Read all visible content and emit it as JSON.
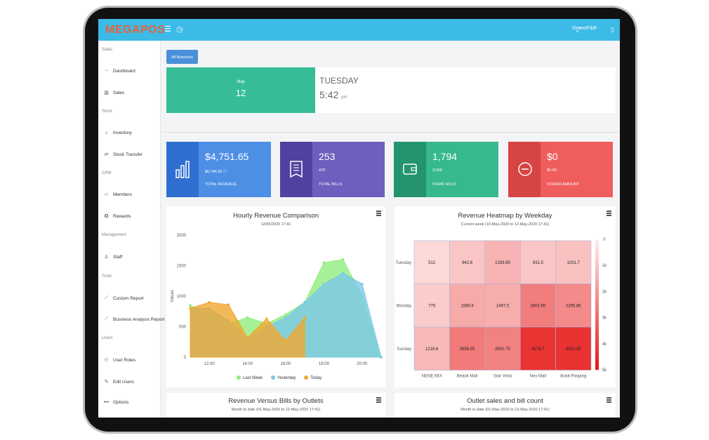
{
  "header": {
    "brand": "MEGAPOS",
    "menu_icon": "hamburger-icon",
    "clock_icon": "clock-icon",
    "user": "DemoF&B",
    "expand_icon": "expand-icon",
    "device_icon": "device-icon"
  },
  "sidebar": {
    "sections": [
      {
        "title": "Sales",
        "items": [
          {
            "label": "Dashboard",
            "icon": "dashboard-icon"
          },
          {
            "label": "Sales",
            "icon": "bar-chart-icon"
          }
        ]
      },
      {
        "title": "Stock",
        "items": [
          {
            "label": "Inventory",
            "icon": "home-icon"
          },
          {
            "label": "Stock Transfer",
            "icon": "transfer-icon"
          }
        ]
      },
      {
        "title": "CRM",
        "items": [
          {
            "label": "Members",
            "icon": "members-icon"
          },
          {
            "label": "Rewards",
            "icon": "rewards-icon"
          }
        ]
      },
      {
        "title": "Management",
        "items": [
          {
            "label": "Staff",
            "icon": "staff-icon"
          }
        ]
      },
      {
        "title": "Tools",
        "items": [
          {
            "label": "Custom Report",
            "icon": "line-chart-icon"
          },
          {
            "label": "Business Analysis Report",
            "icon": "line-chart-icon"
          }
        ]
      },
      {
        "title": "Users",
        "items": [
          {
            "label": "User Roles",
            "icon": "user-roles-icon"
          },
          {
            "label": "Edit Users",
            "icon": "edit-icon"
          },
          {
            "label": "Options",
            "icon": "more-icon"
          }
        ]
      }
    ]
  },
  "branch_button": "All Branches ▾",
  "date_card": {
    "month": "May",
    "day_num": "12",
    "weekday": "TUESDAY",
    "time": "5:42",
    "ampm": "pm"
  },
  "kpis": [
    {
      "value": "$4,751.65",
      "sub": "$6,744.20",
      "label": "TOTAL REVENUE",
      "color": "#4e8fe6",
      "side": "#2f6fd1",
      "icon": "bar-chart-icon"
    },
    {
      "value": "253",
      "sub": "478",
      "label": "TOTAL BILLS",
      "color": "#6c5fbd",
      "side": "#4f42a0",
      "icon": "receipt-icon"
    },
    {
      "value": "1,794",
      "sub": "3,666",
      "label": "ITEMS SOLD",
      "color": "#37b88f",
      "side": "#24946f",
      "icon": "wallet-icon"
    },
    {
      "value": "$0",
      "sub": "$0.00",
      "label": "VOIDED AMOUNT",
      "color": "#ef5d5d",
      "side": "#d74444",
      "icon": "minus-circle-icon"
    }
  ],
  "hourly_chart": {
    "title": "Hourly Revenue Comparison",
    "subtitle": "12/05/2020 17:41",
    "chart_data": {
      "type": "area",
      "ylabel": "Values",
      "ylim": [
        0,
        2000
      ],
      "yticks": [
        "0",
        "500",
        "1000",
        "1500",
        "2000"
      ],
      "xticks": [
        "12:00",
        "14:00",
        "16:00",
        "18:00",
        "20:00"
      ],
      "x": [
        11,
        12,
        13,
        14,
        15,
        16,
        17,
        18,
        19,
        20,
        21
      ],
      "series": [
        {
          "name": "Last Week",
          "color": "#90ed7d",
          "values": [
            850,
            700,
            550,
            650,
            550,
            700,
            900,
            1550,
            1600,
            1000,
            0
          ]
        },
        {
          "name": "Yesterday",
          "color": "#7cc8ea",
          "values": [
            800,
            800,
            600,
            300,
            500,
            650,
            900,
            1200,
            1380,
            1200,
            0
          ]
        },
        {
          "name": "Today",
          "color": "#f0a830",
          "values": [
            800,
            900,
            860,
            320,
            630,
            270,
            650,
            null,
            null,
            null,
            null
          ]
        }
      ]
    }
  },
  "heatmap_chart": {
    "title": "Revenue Heatmap by Weekday",
    "subtitle": "Current week (10-May-2020 to 12-May-2020 17:41)",
    "chart_data": {
      "type": "heatmap",
      "rows": [
        "Tuesday",
        "Monday",
        "Sunday"
      ],
      "columns": [
        "NENE MIX",
        "Bedok Mall",
        "Star Vista",
        "Nex Mall",
        "Bukit Panjang"
      ],
      "values": [
        [
          512,
          942.6,
          1333.85,
          931.5,
          1031.7
        ],
        [
          779,
          1569.9,
          1497.5,
          2601.95,
          2295.85
        ],
        [
          1218.6,
          2656.05,
          2501.75,
          4278.7,
          4310.95
        ]
      ],
      "labels": [
        [
          "512",
          "942.6",
          "1333.85",
          "931.5",
          "1031.7"
        ],
        [
          "779",
          "1569.9",
          "1497.5",
          "2601.95",
          "2295.85"
        ],
        [
          "1218.6",
          "2656.05",
          "2501.75",
          "4278.7",
          "4310.95"
        ]
      ],
      "scale_ticks": [
        "0",
        "1k",
        "2k",
        "3k",
        "4k",
        "5k"
      ],
      "scale_max": 5000
    }
  },
  "bottom_panels": [
    {
      "title": "Revenue Versus Bills by Outlets",
      "subtitle": "Month to date (01-May-2020 to 12-May-2020 17:41)"
    },
    {
      "title": "Outlet sales and bill count",
      "subtitle": "Month to date (01-May-2020 to 12-May-2020 17:41)"
    }
  ]
}
